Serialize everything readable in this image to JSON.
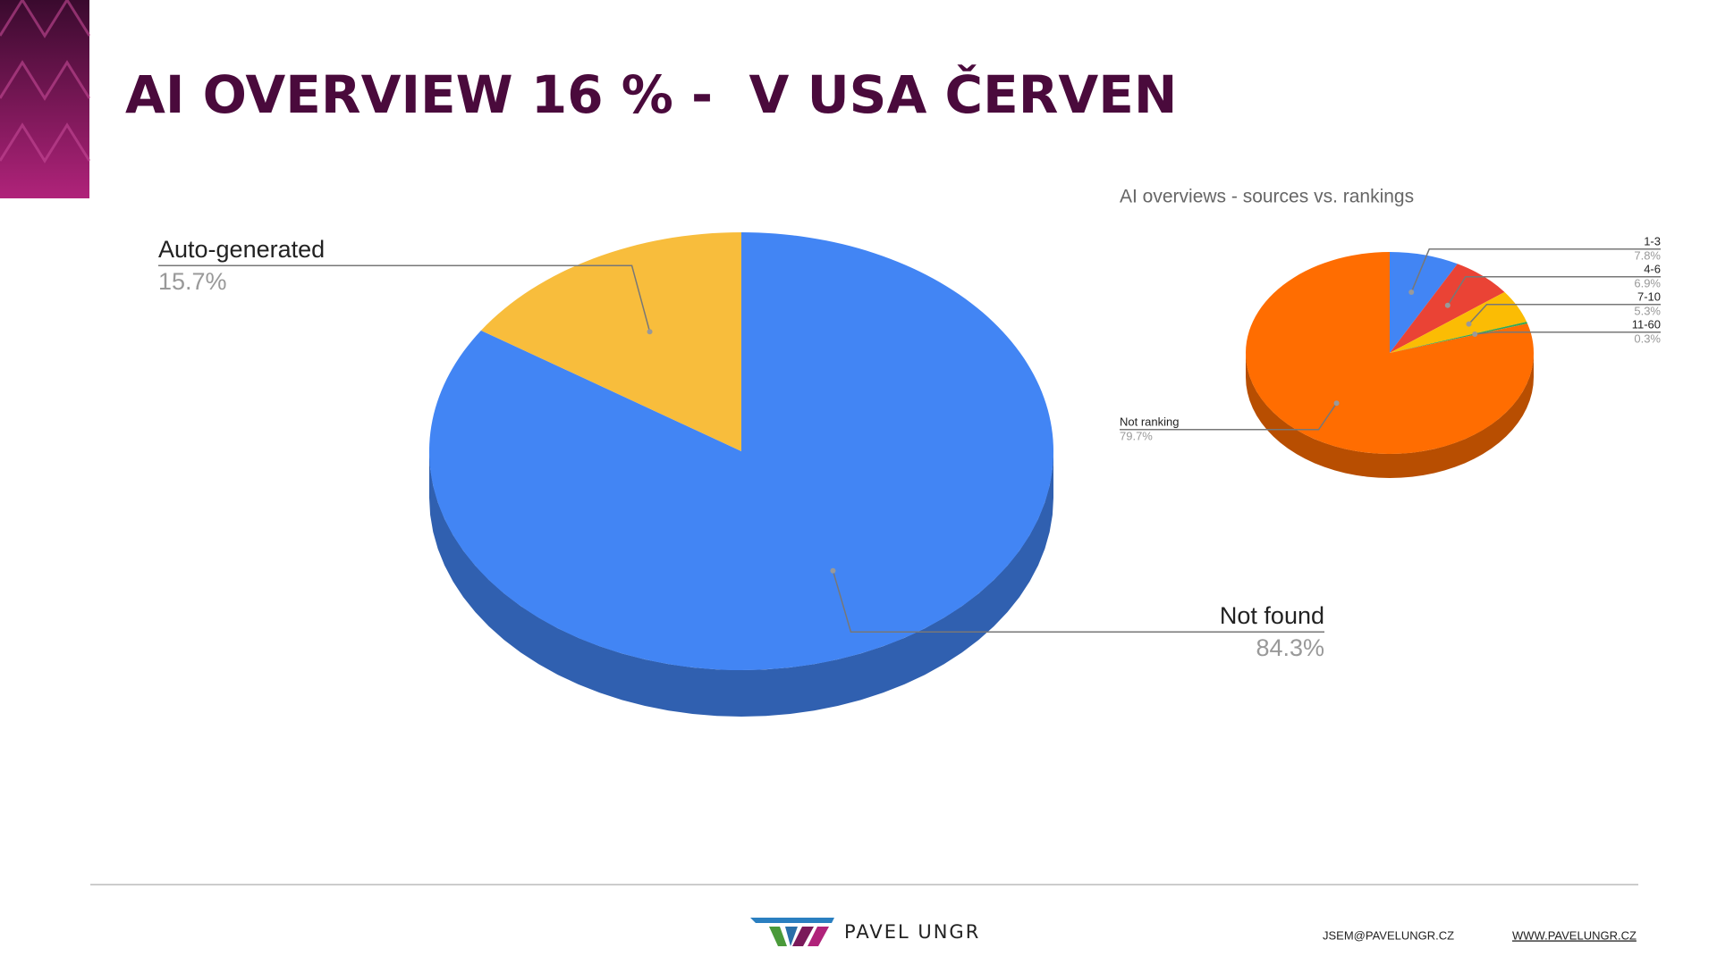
{
  "title": "AI OVERVIEW 16 % -  V USA ČERVEN",
  "chart_data": [
    {
      "type": "pie",
      "categories": [
        "Not found",
        "Auto-generated"
      ],
      "values": [
        84.3,
        15.7
      ],
      "value_labels": [
        "84.3%",
        "15.7%"
      ],
      "colors": [
        "#4285f4",
        "#f8bd3c"
      ]
    },
    {
      "type": "pie",
      "title": "AI overviews - sources vs. rankings",
      "categories": [
        "1-3",
        "4-6",
        "7-10",
        "11-60",
        "Not ranking"
      ],
      "values": [
        7.8,
        6.9,
        5.3,
        0.3,
        79.7
      ],
      "value_labels": [
        "7.8%",
        "6.9%",
        "5.3%",
        "0.3%",
        "79.7%"
      ],
      "colors": [
        "#4285f4",
        "#ea4335",
        "#fbbc04",
        "#34a853",
        "#ff6d01"
      ]
    }
  ],
  "footer": {
    "brand": "PAVEL UNGR",
    "email": "JSEM@PAVELUNGR.CZ",
    "website": "WWW.PAVELUNGR.CZ"
  }
}
